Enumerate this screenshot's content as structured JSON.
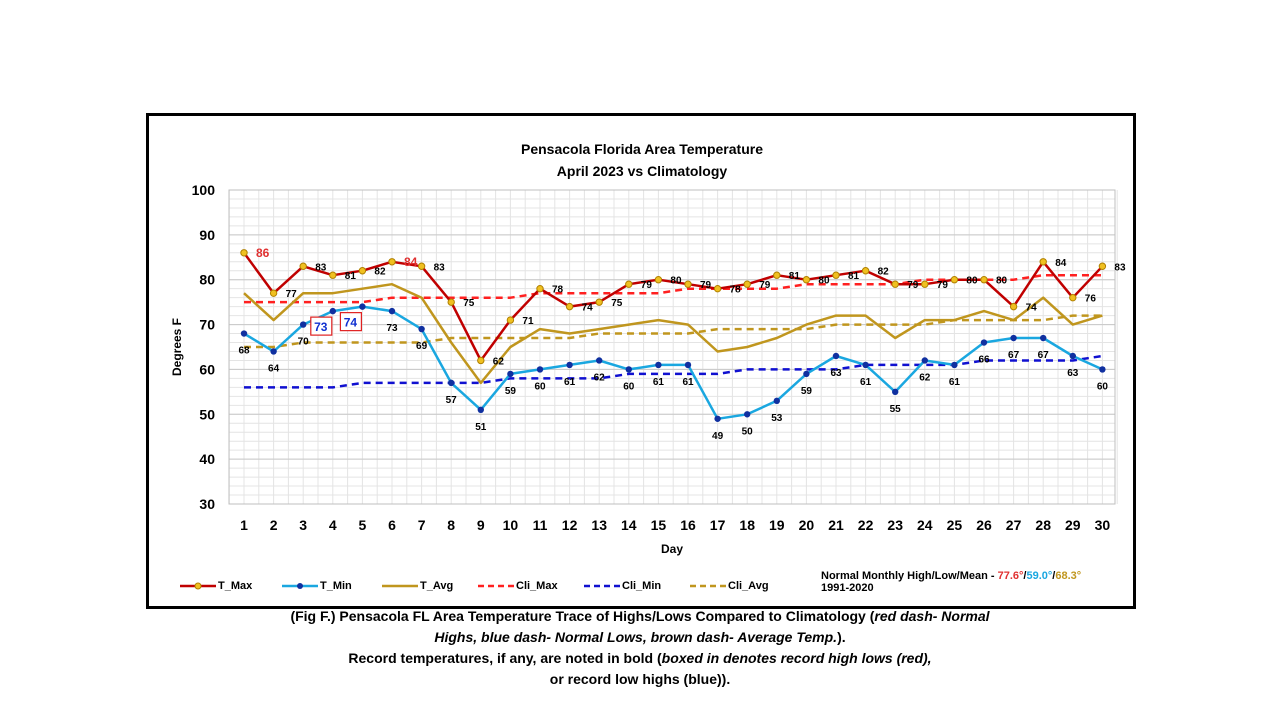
{
  "chart_data": {
    "type": "line",
    "title": "Pensacola Florida Area Temperature",
    "subtitle": "April 2023 vs Climatology",
    "xlabel": "Day",
    "ylabel": "Degrees F",
    "ylim": [
      30,
      100
    ],
    "yticks": [
      30,
      40,
      50,
      60,
      70,
      80,
      90,
      100
    ],
    "grid": true,
    "legend_position": "bottom",
    "x": [
      1,
      2,
      3,
      4,
      5,
      6,
      7,
      8,
      9,
      10,
      11,
      12,
      13,
      14,
      15,
      16,
      17,
      18,
      19,
      20,
      21,
      22,
      23,
      24,
      25,
      26,
      27,
      28,
      29,
      30
    ],
    "series": [
      {
        "name": "T_Max",
        "color": "#c00000",
        "style": "solid-marker-gold",
        "values": [
          86,
          77,
          83,
          81,
          82,
          84,
          83,
          75,
          62,
          71,
          78,
          74,
          75,
          79,
          80,
          79,
          78,
          79,
          81,
          80,
          81,
          82,
          79,
          79,
          80,
          80,
          74,
          84,
          76,
          83
        ]
      },
      {
        "name": "T_Min",
        "color": "#1aa7e0",
        "style": "solid-marker-navy",
        "values": [
          68,
          64,
          70,
          73,
          74,
          73,
          69,
          57,
          51,
          59,
          60,
          61,
          62,
          60,
          61,
          61,
          49,
          50,
          53,
          59,
          63,
          61,
          55,
          62,
          61,
          66,
          67,
          67,
          63,
          60
        ]
      },
      {
        "name": "T_Avg",
        "color": "#c0961e",
        "style": "solid",
        "values": [
          77,
          71,
          77,
          77,
          78,
          79,
          76,
          66,
          57,
          65,
          69,
          68,
          69,
          70,
          71,
          70,
          64,
          65,
          67,
          70,
          72,
          72,
          67,
          71,
          71,
          73,
          71,
          76,
          70,
          72
        ]
      },
      {
        "name": "Cli_Max",
        "color": "#ff2020",
        "style": "dash",
        "values": [
          75,
          75,
          75,
          75,
          75,
          76,
          76,
          76,
          76,
          76,
          77,
          77,
          77,
          77,
          77,
          78,
          78,
          78,
          78,
          79,
          79,
          79,
          79,
          80,
          80,
          80,
          80,
          81,
          81,
          81
        ]
      },
      {
        "name": "Cli_Min",
        "color": "#1010d0",
        "style": "dash",
        "values": [
          56,
          56,
          56,
          56,
          57,
          57,
          57,
          57,
          57,
          58,
          58,
          58,
          58,
          59,
          59,
          59,
          59,
          60,
          60,
          60,
          60,
          61,
          61,
          61,
          61,
          62,
          62,
          62,
          62,
          63
        ]
      },
      {
        "name": "Cli_Avg",
        "color": "#c0961e",
        "style": "dash",
        "values": [
          65,
          65,
          66,
          66,
          66,
          66,
          66,
          67,
          67,
          67,
          67,
          67,
          68,
          68,
          68,
          68,
          69,
          69,
          69,
          69,
          70,
          70,
          70,
          70,
          71,
          71,
          71,
          71,
          72,
          72
        ]
      }
    ],
    "record_labels": {
      "max_red_days": [
        1,
        6
      ],
      "min_boxed_days": [
        4,
        5
      ]
    }
  },
  "note": {
    "prefix": "Normal Monthly High/Low/Mean - ",
    "high": "77.6°",
    "sep1": "/",
    "low": "59.0°",
    "sep2": "/",
    "mean": "68.3°",
    "period": "1991-2020"
  },
  "caption": {
    "line1_a": "(Fig F.) Pensacola FL Area Temperature Trace of Highs/Lows Compared to Climatology (",
    "line1_b": "red dash- Normal",
    "line2_a": "Highs, blue dash- Normal Lows, brown dash- Average Temp.",
    "line2_b": ").",
    "line3_a": "Record temperatures, if any, are noted in bold (",
    "line3_b": "boxed in denotes record high lows (red),",
    "line4": "or record low highs (blue))."
  }
}
